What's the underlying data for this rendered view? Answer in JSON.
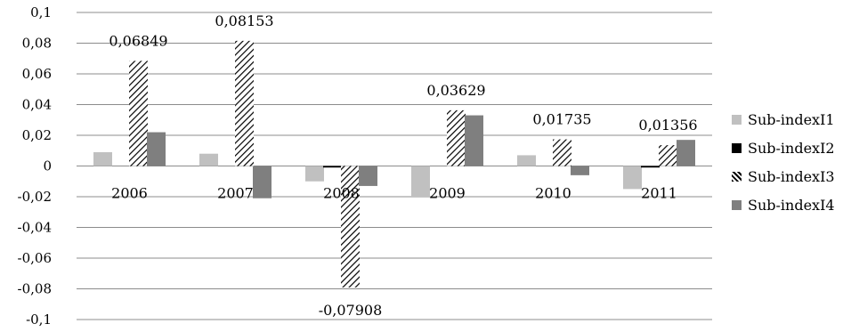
{
  "chart_data": {
    "type": "bar",
    "categories": [
      "2006",
      "2007",
      "2008",
      "2009",
      "2010",
      "2011"
    ],
    "series": [
      {
        "name": "Sub-indexI1",
        "values": [
          0.009,
          0.008,
          -0.01,
          -0.02,
          0.007,
          -0.015
        ],
        "color": "#c0c0c0",
        "pattern": "solid"
      },
      {
        "name": "Sub-indexI2",
        "values": [
          0.0,
          0.0,
          -0.001,
          0.0,
          0.0,
          -0.001
        ],
        "color": "#000000",
        "pattern": "solid"
      },
      {
        "name": "Sub-indexI3",
        "values": [
          0.06849,
          0.08153,
          -0.07908,
          0.03629,
          0.01735,
          0.01356
        ],
        "color": "#000000",
        "pattern": "diagonal-hatch"
      },
      {
        "name": "Sub-indexI4",
        "values": [
          0.022,
          -0.021,
          -0.013,
          0.033,
          -0.006,
          0.017
        ],
        "color": "#7f7f7f",
        "pattern": "solid"
      }
    ],
    "data_labels": {
      "series": "Sub-indexI3",
      "texts": [
        "0,06849",
        "0,08153",
        "-0,07908",
        "0,03629",
        "0,01735",
        "0,01356"
      ]
    },
    "yticks": [
      "0,1",
      "0,08",
      "0,06",
      "0,04",
      "0,02",
      "0",
      "-0,02",
      "-0,04",
      "-0,06",
      "-0,08",
      "-0,1"
    ],
    "ylim": [
      -0.1,
      0.1
    ],
    "grid": true,
    "legend_position": "right"
  }
}
